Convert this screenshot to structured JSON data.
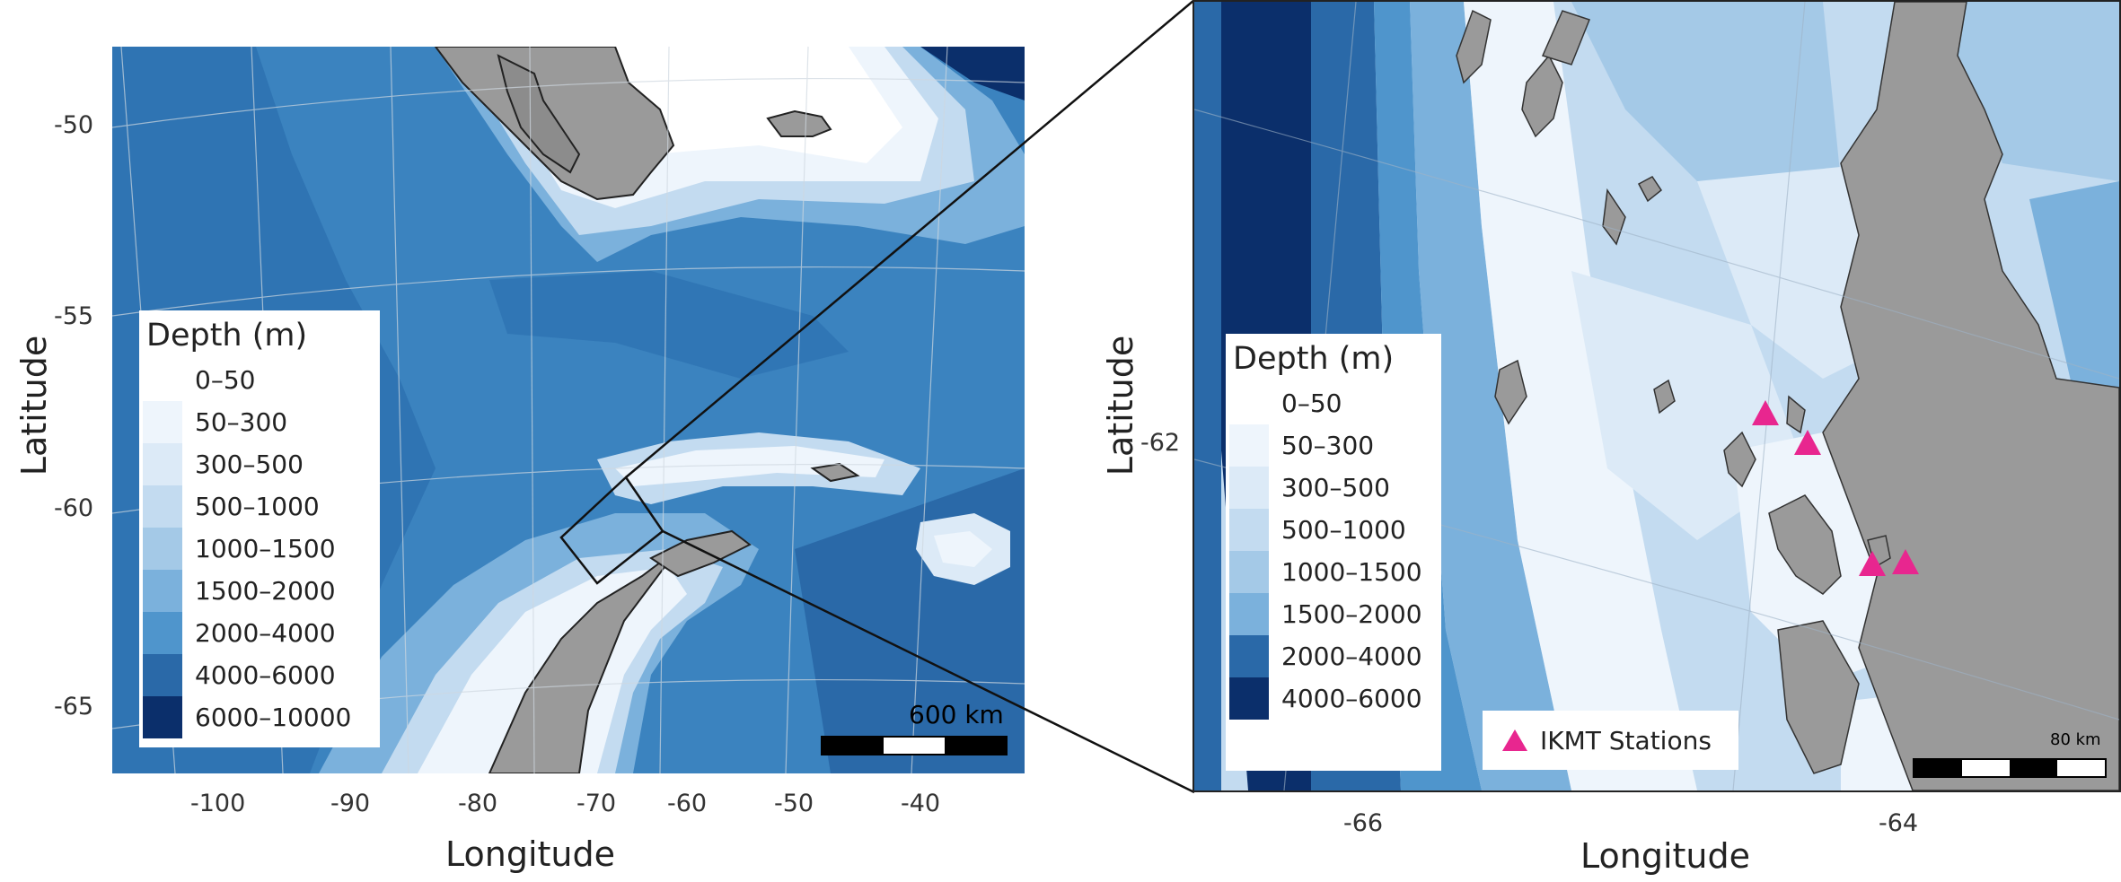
{
  "left_panel": {
    "legend_title": "Depth (m)",
    "legend_items": [
      {
        "label": "0–50",
        "color": "#ffffff"
      },
      {
        "label": "50–300",
        "color": "#eef5fc"
      },
      {
        "label": "300–500",
        "color": "#dceaf7"
      },
      {
        "label": "500–1000",
        "color": "#c3dbf0"
      },
      {
        "label": "1000–1500",
        "color": "#a4c9e7"
      },
      {
        "label": "1500–2000",
        "color": "#7bb1dc"
      },
      {
        "label": "2000–4000",
        "color": "#4f95cc"
      },
      {
        "label": "4000–6000",
        "color": "#2a69a8"
      },
      {
        "label": "6000–10000",
        "color": "#0b2f6b"
      }
    ],
    "scale_label": "600 km",
    "y_ticks": [
      "-50",
      "-55",
      "-60",
      "-65"
    ],
    "x_ticks": [
      "-100",
      "-90",
      "-80",
      "-70",
      "-60",
      "-50",
      "-40"
    ],
    "x_title": "Longitude",
    "y_title": "Latitude"
  },
  "right_panel": {
    "legend_title": "Depth (m)",
    "legend_items": [
      {
        "label": "0–50",
        "color": "#ffffff"
      },
      {
        "label": "50–300",
        "color": "#eef5fc"
      },
      {
        "label": "300–500",
        "color": "#dceaf7"
      },
      {
        "label": "500–1000",
        "color": "#c3dbf0"
      },
      {
        "label": "1000–1500",
        "color": "#a4c9e7"
      },
      {
        "label": "1500–2000",
        "color": "#7bb1dc"
      },
      {
        "label": "2000–4000",
        "color": "#2a69a8"
      },
      {
        "label": "4000–6000",
        "color": "#0b2f6b"
      }
    ],
    "station_label": "IKMT Stations",
    "station_color": "#e8268f",
    "scale_label": "80 km",
    "y_ticks": [
      "-62"
    ],
    "x_ticks": [
      "-66",
      "-64"
    ],
    "x_title": "Longitude",
    "y_title": "Latitude"
  },
  "colors": {
    "land": "#9a9a9a",
    "ocean_deep": "#2a69a8",
    "ocean_mid": "#3b83bf",
    "shelf": "#dceaf7"
  }
}
